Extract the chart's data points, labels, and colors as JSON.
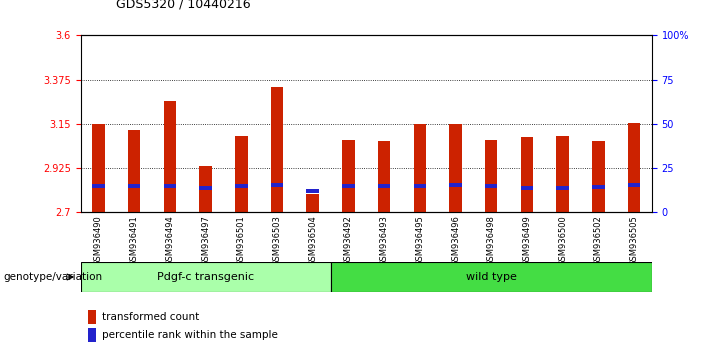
{
  "title": "GDS5320 / 10440216",
  "samples": [
    "GSM936490",
    "GSM936491",
    "GSM936494",
    "GSM936497",
    "GSM936501",
    "GSM936503",
    "GSM936504",
    "GSM936492",
    "GSM936493",
    "GSM936495",
    "GSM936496",
    "GSM936498",
    "GSM936499",
    "GSM936500",
    "GSM936502",
    "GSM936505"
  ],
  "red_values": [
    3.15,
    3.12,
    3.265,
    2.935,
    3.09,
    3.34,
    2.795,
    3.07,
    3.065,
    3.15,
    3.15,
    3.07,
    3.085,
    3.09,
    3.065,
    3.155
  ],
  "blue_values": [
    2.835,
    2.835,
    2.835,
    2.825,
    2.835,
    2.84,
    2.81,
    2.835,
    2.835,
    2.835,
    2.84,
    2.835,
    2.825,
    2.825,
    2.83,
    2.84
  ],
  "ylim_left": [
    2.7,
    3.6
  ],
  "ylim_right": [
    0,
    100
  ],
  "yticks_left": [
    2.7,
    2.925,
    3.15,
    3.375,
    3.6
  ],
  "yticks_right": [
    0,
    25,
    50,
    75,
    100
  ],
  "ytick_labels_left": [
    "2.7",
    "2.925",
    "3.15",
    "3.375",
    "3.6"
  ],
  "ytick_labels_right": [
    "0",
    "25",
    "50",
    "75",
    "100%"
  ],
  "gridlines": [
    2.925,
    3.15,
    3.375
  ],
  "bar_width": 0.35,
  "red_color": "#CC2200",
  "blue_color": "#2222CC",
  "group1_label": "Pdgf-c transgenic",
  "group2_label": "wild type",
  "n_group1": 7,
  "n_group2": 9,
  "group1_color": "#AAFFAA",
  "group2_color": "#44DD44",
  "annotation_label": "genotype/variation",
  "legend1": "transformed count",
  "legend2": "percentile rank within the sample",
  "background_color": "#ffffff",
  "tick_label_area_color": "#CCCCCC",
  "blue_bar_height": 0.018,
  "title_fontsize": 9,
  "tick_fontsize": 7,
  "label_fontsize": 7.5,
  "group_fontsize": 8
}
